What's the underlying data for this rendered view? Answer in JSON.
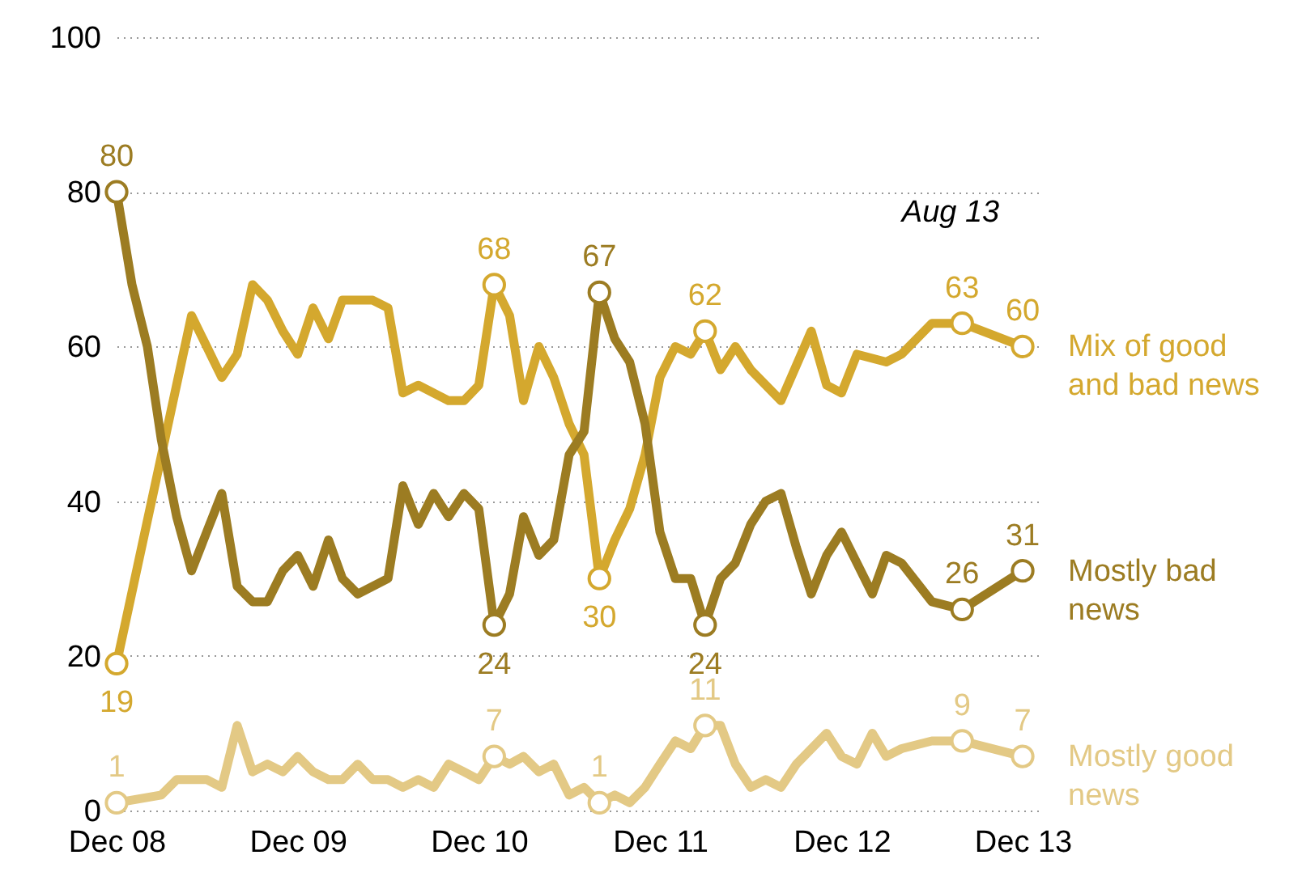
{
  "chart_data": {
    "type": "line",
    "ylim": [
      0,
      100
    ],
    "yticks": [
      0,
      20,
      40,
      60,
      80,
      100
    ],
    "xlim": [
      "2008-12",
      "2014-01"
    ],
    "xticks": [
      {
        "value": "2008-12",
        "label": "Dec 08"
      },
      {
        "value": "2009-12",
        "label": "Dec 09"
      },
      {
        "value": "2010-12",
        "label": "Dec 10"
      },
      {
        "value": "2011-12",
        "label": "Dec 11"
      },
      {
        "value": "2012-12",
        "label": "Dec 12"
      },
      {
        "value": "2013-12",
        "label": "Dec 13"
      }
    ],
    "grid": "y",
    "annotations": [
      "Aug 13"
    ],
    "series": [
      {
        "name": "Mix of good and bad news",
        "color": "#d4a82e",
        "x": [
          "2008-12",
          "2009-05",
          "2009-07",
          "2009-08",
          "2009-09",
          "2009-10",
          "2009-11",
          "2009-12",
          "2010-01",
          "2010-02",
          "2010-03",
          "2010-05",
          "2010-06",
          "2010-07",
          "2010-08",
          "2010-10",
          "2010-11",
          "2010-12",
          "2011-01",
          "2011-02",
          "2011-03",
          "2011-04",
          "2011-05",
          "2011-06",
          "2011-07",
          "2011-08",
          "2011-09",
          "2011-10",
          "2011-11",
          "2011-12",
          "2012-01",
          "2012-02",
          "2012-03",
          "2012-04",
          "2012-05",
          "2012-06",
          "2012-08",
          "2012-10",
          "2012-11",
          "2012-12",
          "2013-01",
          "2013-03",
          "2013-04",
          "2013-06",
          "2013-08",
          "2013-12"
        ],
        "values": [
          19,
          64,
          56,
          59,
          68,
          66,
          62,
          59,
          65,
          61,
          66,
          66,
          65,
          54,
          55,
          53,
          53,
          55,
          68,
          64,
          53,
          60,
          56,
          50,
          46,
          30,
          35,
          39,
          46,
          56,
          60,
          59,
          62,
          57,
          60,
          57,
          53,
          62,
          55,
          54,
          59,
          58,
          59,
          63,
          63,
          60
        ],
        "value_labels": [
          "19",
          null,
          null,
          null,
          null,
          null,
          null,
          null,
          null,
          null,
          null,
          null,
          null,
          null,
          null,
          null,
          null,
          null,
          "68",
          null,
          null,
          null,
          null,
          null,
          null,
          "30",
          null,
          null,
          null,
          null,
          null,
          null,
          "62",
          null,
          null,
          null,
          null,
          null,
          null,
          null,
          null,
          null,
          null,
          null,
          "63",
          "60"
        ]
      },
      {
        "name": "Mostly bad news",
        "color": "#9c7c22",
        "x": [
          "2008-12",
          "2009-01",
          "2009-02",
          "2009-03",
          "2009-04",
          "2009-05",
          "2009-07",
          "2009-08",
          "2009-09",
          "2009-10",
          "2009-11",
          "2009-12",
          "2010-01",
          "2010-02",
          "2010-03",
          "2010-04",
          "2010-06",
          "2010-07",
          "2010-08",
          "2010-09",
          "2010-10",
          "2010-11",
          "2010-12",
          "2011-01",
          "2011-02",
          "2011-03",
          "2011-04",
          "2011-05",
          "2011-06",
          "2011-07",
          "2011-08",
          "2011-09",
          "2011-10",
          "2011-11",
          "2011-12",
          "2012-01",
          "2012-02",
          "2012-03",
          "2012-04",
          "2012-05",
          "2012-06",
          "2012-07",
          "2012-08",
          "2012-09",
          "2012-10",
          "2012-11",
          "2012-12",
          "2013-02",
          "2013-03",
          "2013-04",
          "2013-06",
          "2013-08",
          "2013-12"
        ],
        "values": [
          80,
          68,
          60,
          48,
          38,
          31,
          41,
          29,
          27,
          27,
          31,
          33,
          29,
          35,
          30,
          28,
          30,
          42,
          37,
          41,
          38,
          41,
          39,
          24,
          28,
          38,
          33,
          35,
          46,
          49,
          67,
          61,
          58,
          50,
          36,
          30,
          30,
          24,
          30,
          32,
          37,
          40,
          41,
          34,
          28,
          33,
          36,
          28,
          33,
          32,
          27,
          26,
          31
        ],
        "value_labels": [
          "80",
          null,
          null,
          null,
          null,
          null,
          null,
          null,
          null,
          null,
          null,
          null,
          null,
          null,
          null,
          null,
          null,
          null,
          null,
          null,
          null,
          null,
          null,
          "24",
          null,
          null,
          null,
          null,
          null,
          null,
          "67",
          null,
          null,
          null,
          null,
          null,
          null,
          "24",
          null,
          null,
          null,
          null,
          null,
          null,
          null,
          null,
          null,
          null,
          null,
          null,
          null,
          "26",
          "31"
        ]
      },
      {
        "name": "Mostly good news",
        "color": "#e3c985",
        "x": [
          "2008-12",
          "2009-03",
          "2009-04",
          "2009-06",
          "2009-07",
          "2009-08",
          "2009-09",
          "2009-10",
          "2009-11",
          "2009-12",
          "2010-01",
          "2010-02",
          "2010-03",
          "2010-04",
          "2010-05",
          "2010-06",
          "2010-07",
          "2010-08",
          "2010-09",
          "2010-10",
          "2010-11",
          "2010-12",
          "2011-01",
          "2011-02",
          "2011-03",
          "2011-04",
          "2011-05",
          "2011-06",
          "2011-07",
          "2011-08",
          "2011-09",
          "2011-10",
          "2011-11",
          "2011-12",
          "2012-01",
          "2012-02",
          "2012-03",
          "2012-04",
          "2012-05",
          "2012-06",
          "2012-07",
          "2012-08",
          "2012-09",
          "2012-11",
          "2012-12",
          "2013-01",
          "2013-02",
          "2013-03",
          "2013-04",
          "2013-06",
          "2013-08",
          "2013-12"
        ],
        "values": [
          1,
          2,
          4,
          4,
          3,
          11,
          5,
          6,
          5,
          7,
          5,
          4,
          4,
          6,
          4,
          4,
          3,
          4,
          3,
          6,
          5,
          4,
          7,
          6,
          7,
          5,
          6,
          2,
          3,
          1,
          2,
          1,
          3,
          6,
          9,
          8,
          11,
          11,
          6,
          3,
          4,
          3,
          6,
          10,
          7,
          6,
          10,
          7,
          8,
          9,
          9,
          7
        ],
        "value_labels": [
          "1",
          null,
          null,
          null,
          null,
          null,
          null,
          null,
          null,
          null,
          null,
          null,
          null,
          null,
          null,
          null,
          null,
          null,
          null,
          null,
          null,
          null,
          "7",
          null,
          null,
          null,
          null,
          null,
          null,
          "1",
          null,
          null,
          null,
          null,
          null,
          null,
          "11",
          null,
          null,
          null,
          null,
          null,
          null,
          null,
          null,
          null,
          null,
          null,
          null,
          null,
          "9",
          "7"
        ]
      }
    ]
  }
}
